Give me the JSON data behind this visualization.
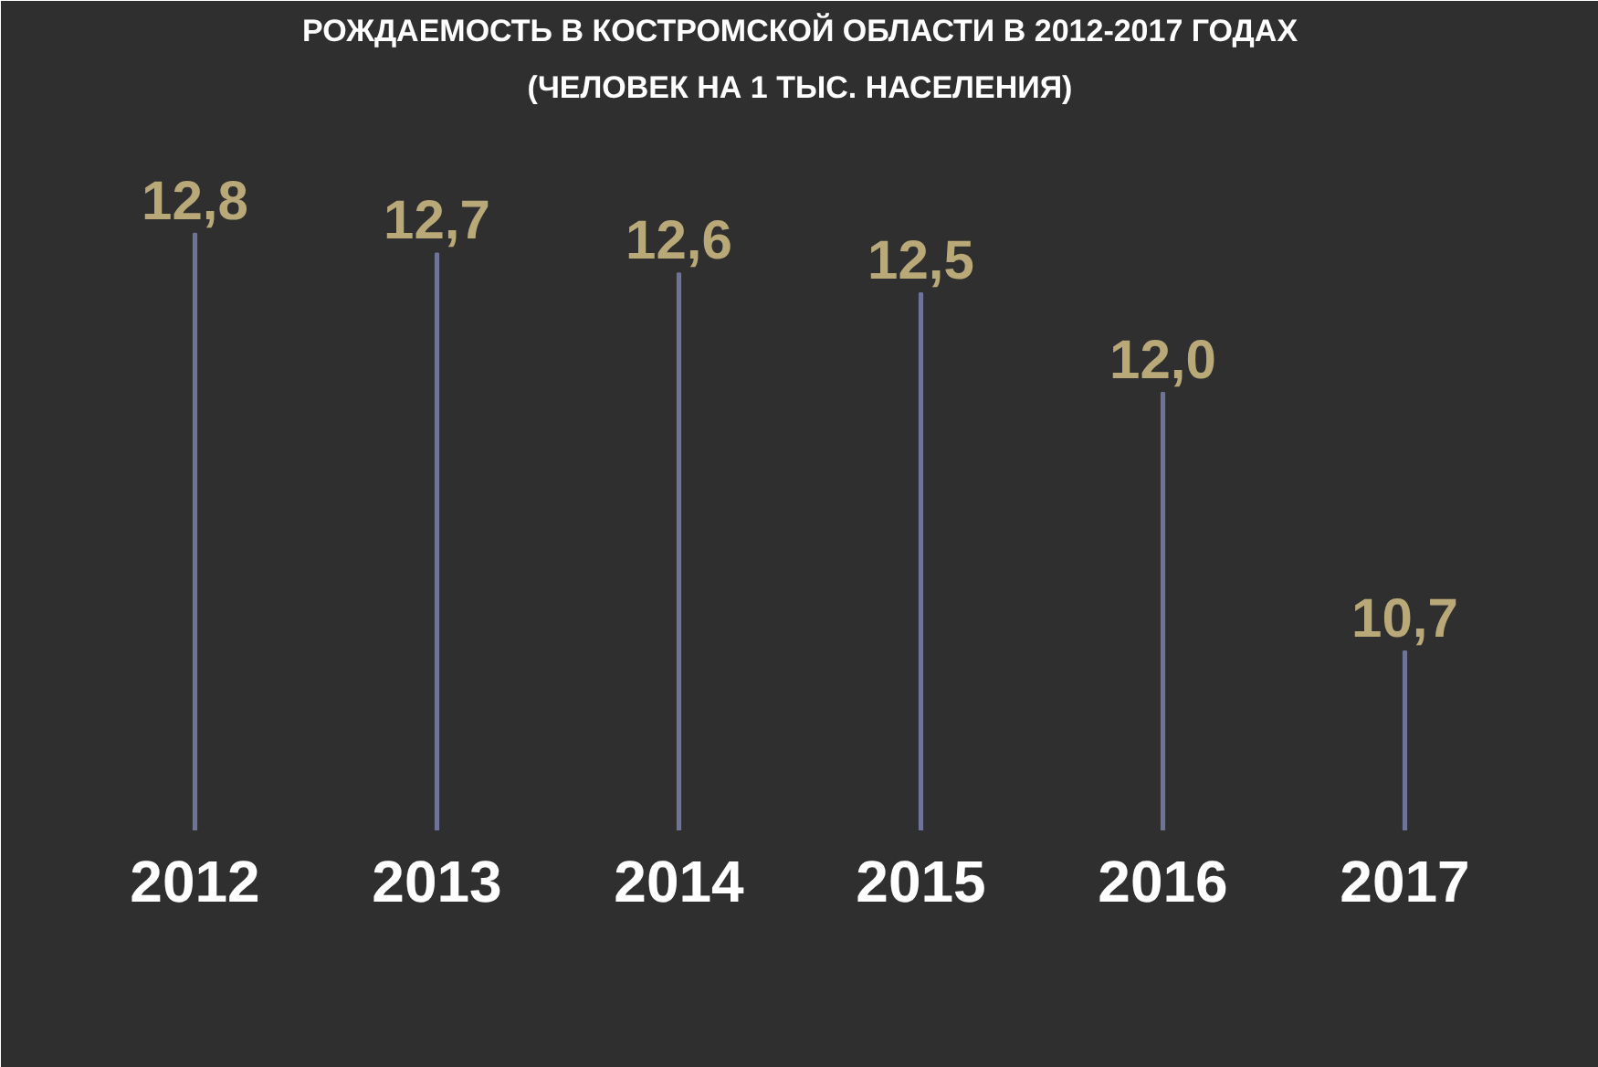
{
  "chart_data": {
    "type": "bar",
    "title": "РОЖДАЕМОСТЬ В КОСТРОМСКОЙ ОБЛАСТИ В 2012-2017 ГОДАХ",
    "subtitle": "(ЧЕЛОВЕК НА 1 ТЫС. НАСЕЛЕНИЯ)",
    "categories": [
      "2012",
      "2013",
      "2014",
      "2015",
      "2016",
      "2017"
    ],
    "values": [
      12.8,
      12.7,
      12.6,
      12.5,
      12.0,
      10.7
    ],
    "value_labels": [
      "12,8",
      "12,7",
      "12,6",
      "12,5",
      "12,0",
      "10,7"
    ],
    "color": "#6e7499",
    "ylim": [
      9.8,
      13.4
    ]
  }
}
